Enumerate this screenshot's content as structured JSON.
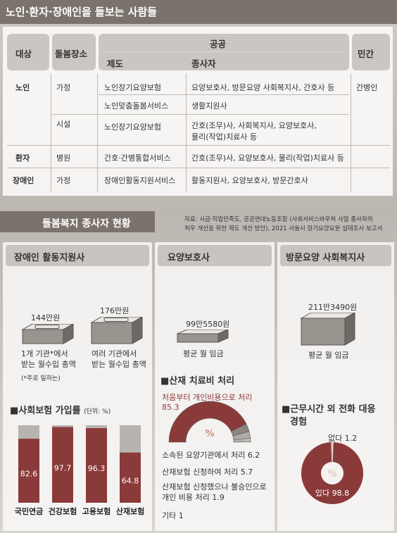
{
  "header": {
    "title": "노인·환자·장애인을 돌보는 사람들"
  },
  "table": {
    "headers": {
      "target": "대상",
      "place": "돌봄장소",
      "public": "공공",
      "system": "제도",
      "worker": "종사자",
      "private": "민간"
    },
    "rows": [
      {
        "target": "노인",
        "place": "가정",
        "system": "노인장기요양보험",
        "worker": "요양보호사, 방문요양 사회복지사, 간호사 등",
        "private": "간병인"
      },
      {
        "target": "",
        "place": "",
        "system": "노인맞춤돌봄서비스",
        "worker": "생활지원사",
        "private": ""
      },
      {
        "target": "",
        "place": "시설",
        "system": "노인장기요양보험",
        "worker": "간호(조무)사, 사회복지사, 요양보호사,",
        "worker2": "물리(작업)치료사 등",
        "private": ""
      },
      {
        "target": "환자",
        "place": "병원",
        "system": "간호·간병통합서비스",
        "worker": "간호(조무)사, 요양보호사, 물리(작업)치료사 등",
        "private": ""
      },
      {
        "target": "장애인",
        "place": "가정",
        "system": "장애인활동지원서비스",
        "worker": "활동지원사, 요양보호사, 방문간호사",
        "private": ""
      }
    ],
    "source_line1": "자료: 시급·직업민족도, 공공연대노동조합 (사회서비스바우처 사업 종사자의",
    "source_line2": "처우 개선을 위한 제도 개선 방안), 2021 서울시 장기요양요원 실태조사 보고서"
  },
  "section": {
    "title": "돌봄복지 종사자 현황"
  },
  "panels": {
    "disability": "장애인 활동지원사",
    "care": "요양보호사",
    "visit": "방문요양 사회복지사"
  },
  "disability": {
    "wage1": {
      "value": "144만원",
      "label1": "1개 기관*에서",
      "label2": "받는 월수입 총액",
      "note": "(*주로 일하는)"
    },
    "wage2": {
      "value": "176만원",
      "label1": "여러 기관에서",
      "label2": "받는 월수입 총액"
    }
  },
  "care": {
    "wage": "99만5580원",
    "wage_label": "평균 월 임금",
    "accident_title": "산재 치료비 처리"
  },
  "visit": {
    "wage": "211만3490원",
    "wage_label": "평균 월 임금",
    "call_title1": "근무시간 외 전화 대응",
    "call_title2": "경험"
  },
  "chart_data": [
    {
      "type": "bar",
      "title": "사회보험 가입률",
      "unit": "(단위: %)",
      "categories": [
        "국민연금",
        "건강보험",
        "고용보험",
        "산재보험"
      ],
      "values": [
        82.6,
        97.7,
        96.3,
        64.8
      ],
      "ylim": [
        0,
        100
      ],
      "colors": {
        "fill": "#8b3a3a",
        "rest": "#b8b3b0"
      }
    },
    {
      "type": "pie",
      "title": "산재 치료비 처리",
      "slices": [
        {
          "label": "처음부터 개인비용으로 처리",
          "value": 85.3
        },
        {
          "label": "소속된 요양기관에서 처리",
          "value": 6.2
        },
        {
          "label": "산재보험 신청하여 처리",
          "value": 5.7
        },
        {
          "label": "산재보험 신청했으나 불승인으로 개인 비용 처리",
          "value": 1.9
        },
        {
          "label": "기타",
          "value": 1.0
        }
      ],
      "symbol": "%",
      "colors": {
        "main": "#8b3a3a",
        "others": [
          "#8c8682",
          "#b0aaa6",
          "#d0cbc7",
          "#e8e4e1"
        ]
      }
    },
    {
      "type": "pie",
      "title": "근무시간 외 전화 대응 경험",
      "slices": [
        {
          "label": "있다",
          "value": 98.8
        },
        {
          "label": "없다",
          "value": 1.2
        }
      ],
      "symbol": "%",
      "colors": {
        "main": "#8b3a3a",
        "other": "#d8d4d0"
      }
    }
  ]
}
